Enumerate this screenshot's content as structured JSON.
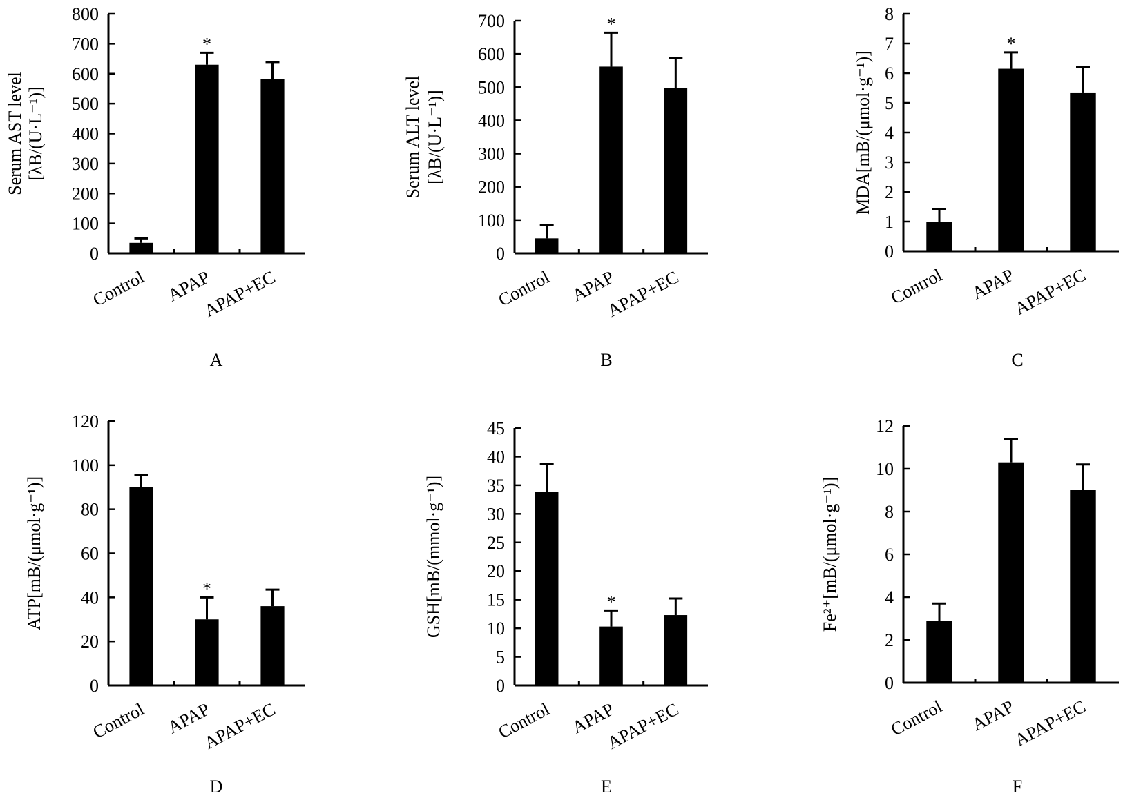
{
  "chart_data": [
    {
      "type": "bar",
      "panel_letter": "A",
      "ylabel_line1": "Serum AST level",
      "ylabel_line2": "[λB/(U·L⁻¹)]",
      "categories": [
        "Control",
        "APAP",
        "APAP+EC"
      ],
      "values": [
        35,
        630,
        582
      ],
      "errors": [
        15,
        40,
        57
      ],
      "significance": [
        "",
        "*",
        ""
      ],
      "ylim": [
        0,
        800
      ],
      "yticks": [
        0,
        100,
        200,
        300,
        400,
        500,
        600,
        700,
        800
      ]
    },
    {
      "type": "bar",
      "panel_letter": "B",
      "ylabel_line1": "Serum ALT level",
      "ylabel_line2": "[λB/(U·L⁻¹)]",
      "categories": [
        "Control",
        "APAP",
        "APAP+EC"
      ],
      "values": [
        45,
        562,
        497
      ],
      "errors": [
        40,
        102,
        90
      ],
      "significance": [
        "",
        "*",
        ""
      ],
      "ylim": [
        0,
        700
      ],
      "yticks": [
        0,
        100,
        200,
        300,
        400,
        500,
        600,
        700
      ]
    },
    {
      "type": "bar",
      "panel_letter": "C",
      "ylabel_line1": "MDA[mB/(μmol·g⁻¹)]",
      "ylabel_line2": "",
      "categories": [
        "Control",
        "APAP",
        "APAP+EC"
      ],
      "values": [
        1.0,
        6.15,
        5.35
      ],
      "errors": [
        0.43,
        0.55,
        0.85
      ],
      "significance": [
        "",
        "*",
        ""
      ],
      "ylim": [
        0,
        8
      ],
      "yticks": [
        0,
        1,
        2,
        3,
        4,
        5,
        6,
        7,
        8
      ]
    },
    {
      "type": "bar",
      "panel_letter": "D",
      "ylabel_line1": "ATP[mB/(μmol·g⁻¹)]",
      "ylabel_line2": "",
      "categories": [
        "Control",
        "APAP",
        "APAP+EC"
      ],
      "values": [
        90,
        30,
        36
      ],
      "errors": [
        5.5,
        10,
        7.5
      ],
      "significance": [
        "",
        "*",
        ""
      ],
      "ylim": [
        0,
        120
      ],
      "yticks": [
        0,
        20,
        40,
        60,
        80,
        100,
        120
      ]
    },
    {
      "type": "bar",
      "panel_letter": "E",
      "ylabel_line1": "GSH[mB/(mmol·g⁻¹)]",
      "ylabel_line2": "",
      "categories": [
        "Control",
        "APAP",
        "APAP+EC"
      ],
      "values": [
        33.8,
        10.3,
        12.3
      ],
      "errors": [
        4.9,
        2.8,
        2.9
      ],
      "significance": [
        "",
        "*",
        ""
      ],
      "ylim": [
        0,
        45
      ],
      "yticks": [
        0,
        5,
        10,
        15,
        20,
        25,
        30,
        35,
        40,
        45
      ]
    },
    {
      "type": "bar",
      "panel_letter": "F",
      "ylabel_line1": "Fe²⁺[mB/(μmol·g⁻¹)]",
      "ylabel_line2": "",
      "categories": [
        "Control",
        "APAP",
        "APAP+EC"
      ],
      "values": [
        2.9,
        10.3,
        9.0
      ],
      "errors": [
        0.8,
        1.1,
        1.2
      ],
      "significance": [
        "",
        "",
        ""
      ],
      "ylim": [
        0,
        12
      ],
      "yticks": [
        0,
        2,
        4,
        6,
        8,
        10,
        12
      ]
    }
  ]
}
